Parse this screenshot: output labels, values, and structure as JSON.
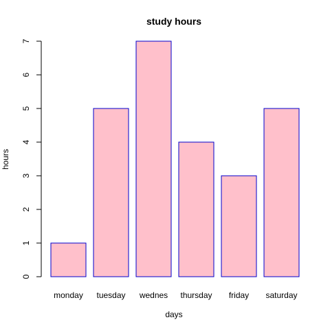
{
  "chart_data": {
    "type": "bar",
    "title": "study hours",
    "xlabel": "days",
    "ylabel": "hours",
    "categories": [
      "monday",
      "tuesday",
      "wednes",
      "thursday",
      "friday",
      "saturday"
    ],
    "values": [
      1,
      5,
      7,
      4,
      3,
      5
    ],
    "ylim": [
      0,
      7
    ],
    "yticks": [
      "0",
      "1",
      "2",
      "3",
      "4",
      "5",
      "6",
      "7"
    ],
    "grid": false,
    "legend": "none",
    "colors": {
      "bar_fill": "#FFC0CB",
      "bar_stroke": "#0000CD",
      "axis": "#000000"
    }
  }
}
